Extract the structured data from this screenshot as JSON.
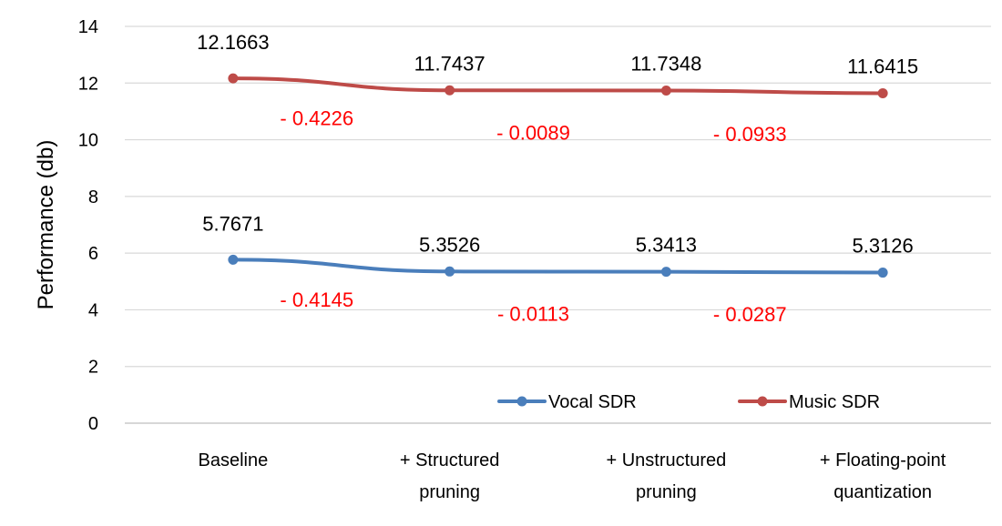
{
  "chart_data": {
    "type": "line",
    "title": "",
    "xlabel": "",
    "ylabel": "Performance  (db)",
    "ylim": [
      0,
      14
    ],
    "yticks": [
      0,
      2,
      4,
      6,
      8,
      10,
      12,
      14
    ],
    "grid": true,
    "legend_position": "bottom-right",
    "categories": [
      [
        "Baseline"
      ],
      [
        "+ Structured",
        "pruning"
      ],
      [
        "+ Unstructured",
        "pruning"
      ],
      [
        "+ Floating-point",
        "quantization"
      ]
    ],
    "series": [
      {
        "name": "Vocal SDR",
        "color": "#4a7ebb",
        "values": [
          5.7671,
          5.3526,
          5.3413,
          5.3126
        ],
        "labels": [
          "5.7671",
          "5.3526",
          "5.3413",
          "5.3126"
        ],
        "deltas": [
          "- 0.4145",
          "- 0.0113",
          "- 0.0287"
        ]
      },
      {
        "name": "Music SDR",
        "color": "#be4b48",
        "values": [
          12.1663,
          11.7437,
          11.7348,
          11.6415
        ],
        "labels": [
          "12.1663",
          "11.7437",
          "11.7348",
          "11.6415"
        ],
        "deltas": [
          "- 0.4226",
          "- 0.0089",
          "- 0.0933"
        ]
      }
    ],
    "delta_color": "#ff0000"
  }
}
